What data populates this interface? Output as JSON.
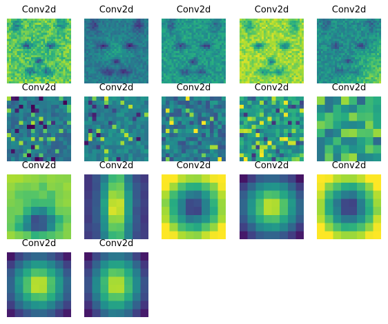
{
  "figure": {
    "panels": [
      {
        "title": "Conv2d",
        "grid_size": 32,
        "pattern": "cat-bright"
      },
      {
        "title": "Conv2d",
        "grid_size": 32,
        "pattern": "cat-dark"
      },
      {
        "title": "Conv2d",
        "grid_size": 32,
        "pattern": "cat-mid"
      },
      {
        "title": "Conv2d",
        "grid_size": 32,
        "pattern": "cat-light"
      },
      {
        "title": "Conv2d",
        "grid_size": 32,
        "pattern": "cat-diag"
      },
      {
        "title": "Conv2d",
        "grid_size": 16,
        "pattern": "noise-a"
      },
      {
        "title": "Conv2d",
        "grid_size": 16,
        "pattern": "noise-b"
      },
      {
        "title": "Conv2d",
        "grid_size": 16,
        "pattern": "noise-c"
      },
      {
        "title": "Conv2d",
        "grid_size": 16,
        "pattern": "noise-d"
      },
      {
        "title": "Conv2d",
        "grid_size": 8,
        "pattern": "coarse"
      },
      {
        "title": "Conv2d",
        "grid_size": 8,
        "pattern": "blob-offcenter"
      },
      {
        "title": "Conv2d",
        "grid_size": 8,
        "pattern": "vertical-bright"
      },
      {
        "title": "Conv2d",
        "grid_size": 8,
        "pattern": "center-dark"
      },
      {
        "title": "Conv2d",
        "grid_size": 8,
        "pattern": "center-bright"
      },
      {
        "title": "Conv2d",
        "grid_size": 8,
        "pattern": "center-dark"
      },
      {
        "title": "Conv2d",
        "grid_size": 8,
        "pattern": "center-bright"
      },
      {
        "title": "Conv2d",
        "grid_size": 8,
        "pattern": "center-bright-tall"
      }
    ],
    "colormap": "viridis"
  }
}
